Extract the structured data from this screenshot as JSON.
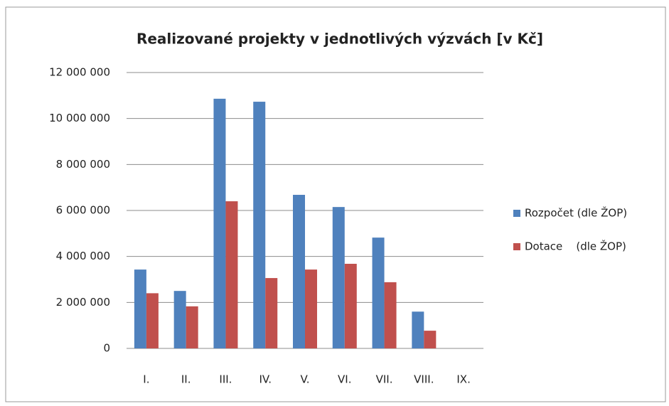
{
  "chart_data": {
    "type": "bar",
    "title": "Realizované projekty v jednotlivých výzvách [v Kč]",
    "categories": [
      "I.",
      "II.",
      "III.",
      "IV.",
      "V.",
      "VI.",
      "VII.",
      "VIII.",
      "IX."
    ],
    "series": [
      {
        "name": "Rozpočet (dle ŽOP)",
        "color": "#4f81bd",
        "values": [
          3430000,
          2500000,
          10860000,
          10730000,
          6680000,
          6150000,
          4820000,
          1600000,
          null
        ]
      },
      {
        "name": "Dotace    (dle ŽOP)",
        "color": "#c0504d",
        "values": [
          2400000,
          1830000,
          6400000,
          3060000,
          3430000,
          3680000,
          2880000,
          770000,
          null
        ]
      }
    ],
    "ylim": [
      0,
      12000000
    ],
    "yticks": [
      {
        "value": 0,
        "label": "0"
      },
      {
        "value": 2000000,
        "label": "2 000 000"
      },
      {
        "value": 4000000,
        "label": "4 000 000"
      },
      {
        "value": 6000000,
        "label": "6 000 000"
      },
      {
        "value": 8000000,
        "label": "8 000 000"
      },
      {
        "value": 10000000,
        "label": "10 000 000"
      },
      {
        "value": 12000000,
        "label": "12 000 000"
      }
    ],
    "grid": true,
    "legend": "right"
  }
}
